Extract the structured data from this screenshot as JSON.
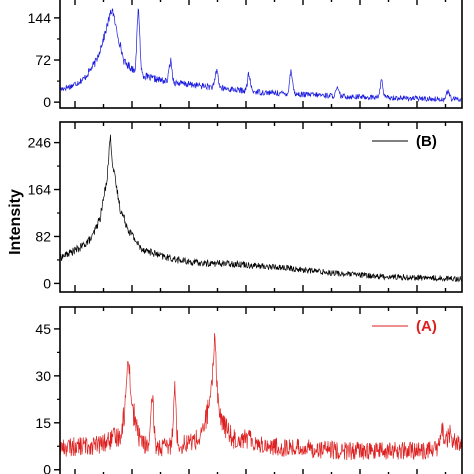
{
  "chart_data": {
    "type": "line",
    "ylabel": "Intensity",
    "panels": [
      {
        "id": "C",
        "legend": "",
        "color": "#1a1adf",
        "ylim": [
          -10,
          178
        ],
        "yticks": [
          0,
          72,
          144
        ],
        "ytick_labels": [
          "0",
          "72",
          "144"
        ],
        "x": [
          0,
          0.03,
          0.06,
          0.09,
          0.11,
          0.125,
          0.13,
          0.14,
          0.16,
          0.19,
          0.22,
          0.26,
          0.3,
          0.35,
          0.4,
          0.45,
          0.5,
          0.55,
          0.6,
          0.65,
          0.7,
          0.75,
          0.8,
          0.85,
          0.9,
          0.95,
          1.0
        ],
        "values": [
          22,
          28,
          40,
          70,
          112,
          150,
          160,
          125,
          68,
          52,
          42,
          36,
          32,
          28,
          24,
          20,
          17,
          15,
          13,
          12,
          10,
          9,
          8,
          7,
          6,
          5,
          5
        ],
        "peaks": [
          {
            "x": 0.195,
            "height": 105
          },
          {
            "x": 0.275,
            "height": 35
          },
          {
            "x": 0.39,
            "height": 30
          },
          {
            "x": 0.47,
            "height": 28
          },
          {
            "x": 0.575,
            "height": 40
          },
          {
            "x": 0.69,
            "height": 12
          },
          {
            "x": 0.8,
            "height": 28
          },
          {
            "x": 0.965,
            "height": 14
          }
        ],
        "noise": 7
      },
      {
        "id": "B",
        "legend": "(B)",
        "color": "#000000",
        "ylim": [
          -15,
          282
        ],
        "yticks": [
          0,
          82,
          164,
          246
        ],
        "ytick_labels": [
          "0",
          "82",
          "164",
          "246"
        ],
        "x": [
          0,
          0.05,
          0.08,
          0.1,
          0.115,
          0.125,
          0.135,
          0.15,
          0.17,
          0.2,
          0.25,
          0.3,
          0.35,
          0.4,
          0.45,
          0.5,
          0.55,
          0.6,
          0.7,
          0.8,
          0.9,
          1.0
        ],
        "values": [
          45,
          62,
          80,
          115,
          175,
          215,
          190,
          130,
          95,
          62,
          48,
          40,
          35,
          35,
          34,
          30,
          28,
          24,
          17,
          12,
          10,
          8
        ],
        "peaks": [
          {
            "x": 0.125,
            "height": 40
          }
        ],
        "noise": 8
      },
      {
        "id": "A",
        "legend": "(A)",
        "color": "#dd1f1f",
        "ylim": [
          -2,
          52
        ],
        "yticks": [
          0,
          15,
          30,
          45
        ],
        "ytick_labels": [
          "0",
          "15",
          "30",
          "45"
        ],
        "x": [
          0,
          0.1,
          0.15,
          0.16,
          0.17,
          0.18,
          0.195,
          0.21,
          0.25,
          0.3,
          0.35,
          0.37,
          0.385,
          0.4,
          0.43,
          0.47,
          0.5,
          0.55,
          0.6,
          0.7,
          0.8,
          0.9,
          0.95,
          0.97,
          0.99,
          1.0
        ],
        "values": [
          7,
          8,
          11,
          18,
          27,
          20,
          11,
          8,
          7,
          8,
          10,
          20,
          28,
          16,
          10,
          10,
          8,
          7,
          7,
          6,
          6,
          6,
          7,
          11,
          8,
          7
        ],
        "peaks": [
          {
            "x": 0.17,
            "height": 10
          },
          {
            "x": 0.23,
            "height": 14
          },
          {
            "x": 0.285,
            "height": 18
          },
          {
            "x": 0.385,
            "height": 15
          },
          {
            "x": 0.95,
            "height": 6
          }
        ],
        "noise": 4
      }
    ]
  }
}
